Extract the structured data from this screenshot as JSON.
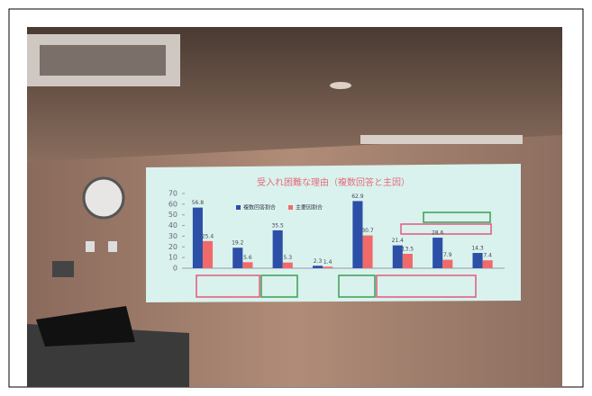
{
  "chart_data": {
    "type": "bar",
    "title": "受入れ困難な理由（複数回答と主因）",
    "categories": [
      null,
      null,
      null,
      null,
      null,
      null,
      null,
      null
    ],
    "series": [
      {
        "name": "複数回答割合",
        "color": "#2c4fa8",
        "values": [
          56.8,
          19.2,
          35.5,
          2.3,
          62.9,
          21.4,
          28.6,
          14.3
        ]
      },
      {
        "name": "主要因割合",
        "color": "#f06a6a",
        "values": [
          25.4,
          5.6,
          5.3,
          1.4,
          30.7,
          13.5,
          7.9,
          7.4
        ]
      }
    ],
    "ylim": [
      0,
      70
    ],
    "yticks": [
      0,
      10,
      20,
      30,
      40,
      50,
      60,
      70
    ],
    "grid": false
  }
}
